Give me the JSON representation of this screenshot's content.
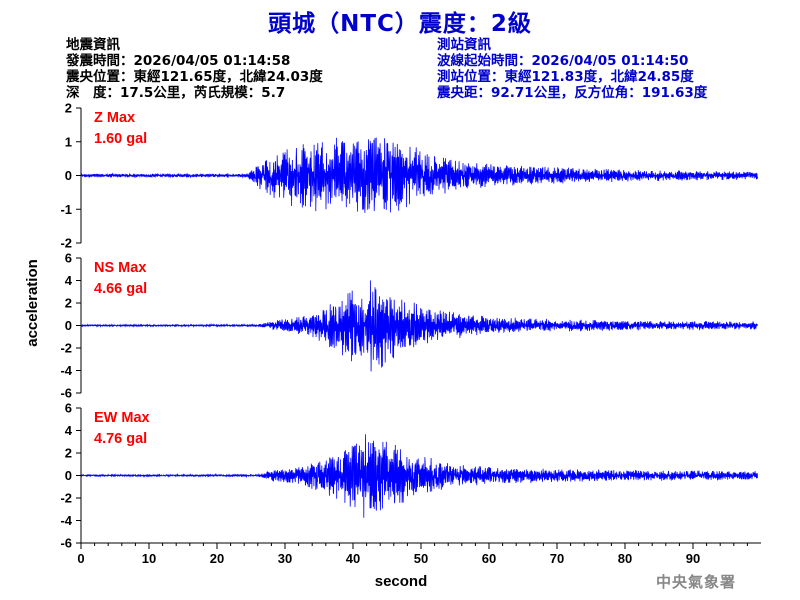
{
  "title": "頭城（NTC）震度：2級",
  "left_info": [
    "地震資訊",
    "發震時間：2026/04/05 01:14:58",
    "震央位置：東經121.65度，北緯24.03度",
    "深　度：17.5公里，芮氏規模：5.7"
  ],
  "right_info": [
    "測站資訊",
    "波線起始時間：2026/04/05 01:14:50",
    "測站位置：東經121.83度，北緯24.85度",
    "震央距：92.71公里，反方位角：191.63度"
  ],
  "watermark": "中央氣象署",
  "colors": {
    "title": "#0000cc",
    "trace": "#0000ff",
    "max_label": "#ff0000",
    "right_info": "#0000cc"
  },
  "chart_data": {
    "type": "line",
    "xlabel": "second",
    "ylabel": "acceleration",
    "xlim": [
      0,
      100
    ],
    "xticks": [
      0,
      10,
      20,
      30,
      40,
      50,
      60,
      70,
      80,
      90
    ],
    "grid": false,
    "panels": [
      {
        "name": "Z",
        "max_label": "Z Max",
        "max_value": "1.60 gal",
        "ylim": [
          -2,
          2
        ],
        "yticks": [
          -2,
          -1,
          0,
          1,
          2
        ],
        "envelope": [
          [
            0,
            0.05
          ],
          [
            24.5,
            0.06
          ],
          [
            26,
            0.4
          ],
          [
            28,
            0.9
          ],
          [
            32,
            1.0
          ],
          [
            38,
            1.2
          ],
          [
            42,
            1.25
          ],
          [
            46,
            1.15
          ],
          [
            50,
            0.8
          ],
          [
            55,
            0.5
          ],
          [
            60,
            0.35
          ],
          [
            70,
            0.25
          ],
          [
            80,
            0.18
          ],
          [
            90,
            0.15
          ],
          [
            99.5,
            0.12
          ]
        ]
      },
      {
        "name": "NS",
        "max_label": "NS Max",
        "max_value": "4.66 gal",
        "ylim": [
          -6,
          6
        ],
        "yticks": [
          -6,
          -4,
          -2,
          0,
          2,
          4,
          6
        ],
        "envelope": [
          [
            0,
            0.08
          ],
          [
            26,
            0.1
          ],
          [
            28,
            0.4
          ],
          [
            33,
            0.9
          ],
          [
            38,
            2.5
          ],
          [
            41,
            3.8
          ],
          [
            43.5,
            4.4
          ],
          [
            46,
            3.0
          ],
          [
            50,
            1.8
          ],
          [
            55,
            1.2
          ],
          [
            60,
            0.8
          ],
          [
            70,
            0.55
          ],
          [
            80,
            0.45
          ],
          [
            90,
            0.4
          ],
          [
            99.5,
            0.35
          ]
        ]
      },
      {
        "name": "EW",
        "max_label": "EW Max",
        "max_value": "4.76 gal",
        "ylim": [
          -6,
          6
        ],
        "yticks": [
          -6,
          -4,
          -2,
          0,
          2,
          4,
          6
        ],
        "envelope": [
          [
            0,
            0.08
          ],
          [
            26,
            0.1
          ],
          [
            28,
            0.5
          ],
          [
            33,
            1.0
          ],
          [
            38,
            2.2
          ],
          [
            41,
            3.6
          ],
          [
            42.5,
            4.5
          ],
          [
            45,
            3.2
          ],
          [
            50,
            1.8
          ],
          [
            55,
            1.1
          ],
          [
            60,
            0.8
          ],
          [
            70,
            0.6
          ],
          [
            80,
            0.5
          ],
          [
            90,
            0.45
          ],
          [
            99.5,
            0.4
          ]
        ]
      }
    ]
  }
}
